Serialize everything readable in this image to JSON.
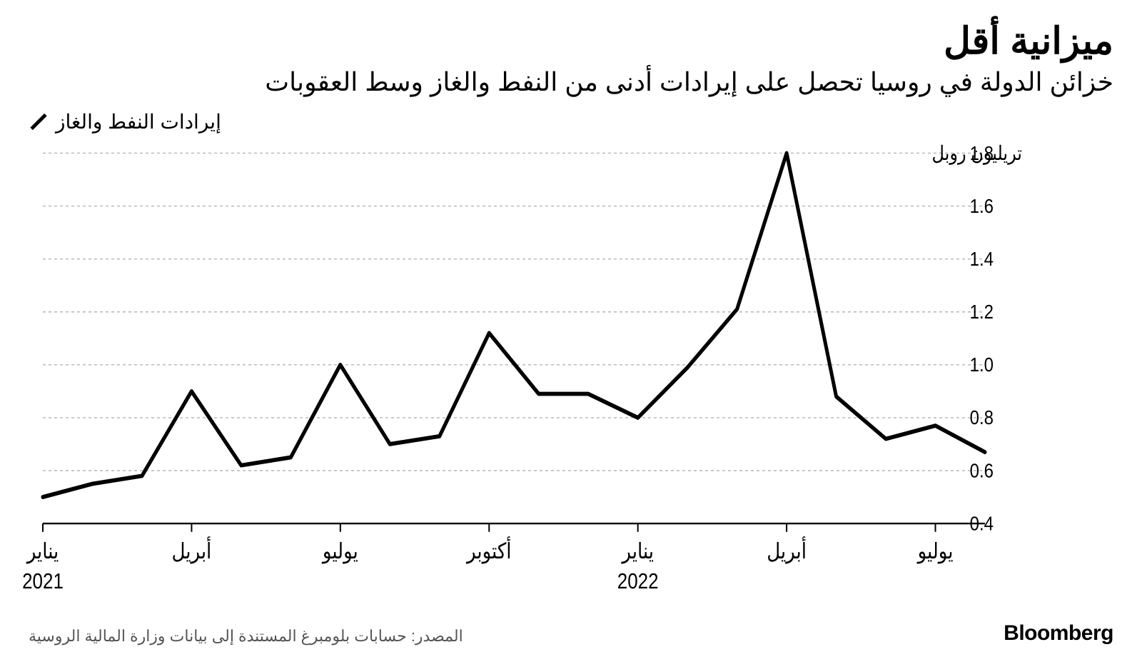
{
  "header": {
    "title": "ميزانية أقل",
    "subtitle": "خزائن الدولة في روسيا تحصل على إيرادات أدنى من النفط والغاز وسط العقوبات"
  },
  "legend": {
    "label": "إيرادات النفط والغاز",
    "color": "#000000"
  },
  "chart": {
    "type": "line",
    "background_color": "#ffffff",
    "grid_color": "#b5b5b5",
    "axis_color": "#000000",
    "line_color": "#000000",
    "line_width": 5,
    "ylim": [
      0.4,
      1.8
    ],
    "ytick_step": 0.2,
    "yticks": [
      0.4,
      0.6,
      0.8,
      1.0,
      1.2,
      1.4,
      1.6,
      1.8
    ],
    "y_unit_label": "تريليون روبل",
    "x_labels": [
      {
        "idx": 0,
        "label": "يناير",
        "year": "2021"
      },
      {
        "idx": 3,
        "label": "أبريل",
        "year": ""
      },
      {
        "idx": 6,
        "label": "يوليو",
        "year": ""
      },
      {
        "idx": 9,
        "label": "أكتوبر",
        "year": ""
      },
      {
        "idx": 12,
        "label": "يناير",
        "year": "2022"
      },
      {
        "idx": 15,
        "label": "أبريل",
        "year": ""
      },
      {
        "idx": 18,
        "label": "يوليو",
        "year": ""
      }
    ],
    "values": [
      0.5,
      0.55,
      0.58,
      0.9,
      0.62,
      0.65,
      1.0,
      0.7,
      0.73,
      1.12,
      0.89,
      0.89,
      0.8,
      0.99,
      1.21,
      1.8,
      0.88,
      0.72,
      0.77,
      0.67
    ],
    "label_fontsize": 24,
    "tick_fontsize": 26
  },
  "footer": {
    "source": "المصدر: حسابات بلومبرغ المستندة إلى بيانات وزارة المالية الروسية",
    "brand": "Bloomberg"
  }
}
